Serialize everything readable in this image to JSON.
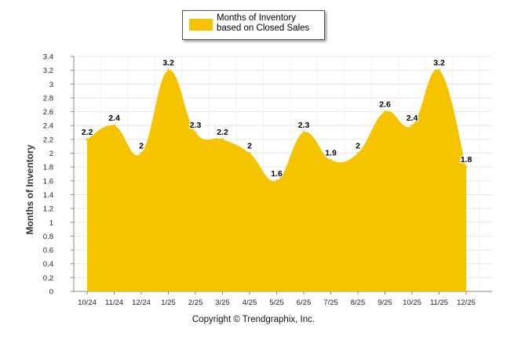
{
  "legend": {
    "label": "Months of Inventory based on Closed Sales"
  },
  "copyright": "Copyright © Trendgraphix, Inc.",
  "colors": {
    "series": "#f5c300",
    "grid": "#e6e6e6",
    "axis": "#888888"
  },
  "chart_data": {
    "type": "area",
    "title": "",
    "xlabel": "",
    "ylabel": "Months of Inventory",
    "categories": [
      "10/24",
      "11/24",
      "12/24",
      "1/25",
      "2/25",
      "3/25",
      "4/25",
      "5/25",
      "6/25",
      "7/25",
      "8/25",
      "9/25",
      "10/25",
      "11/25",
      "12/25"
    ],
    "series": [
      {
        "name": "Months of Inventory based on Closed Sales",
        "values": [
          2.2,
          2.4,
          2,
          3.2,
          2.3,
          2.2,
          2,
          1.6,
          2.3,
          1.9,
          2,
          2.6,
          2.4,
          3.2,
          1.8
        ]
      }
    ],
    "data_labels": [
      "2.2",
      "2.4",
      "2",
      "3.2",
      "2.3",
      "2.2",
      "2",
      "1.6",
      "2.3",
      "1.9",
      "2",
      "2.6",
      "2.4",
      "3.2",
      "1.8"
    ],
    "ylim": [
      0,
      3.4
    ],
    "yticks": [
      "0",
      "0.2",
      "0.4",
      "0.6",
      "0.8",
      "1",
      "1.2",
      "1.4",
      "1.6",
      "1.8",
      "2",
      "2.2",
      "2.4",
      "2.6",
      "2.8",
      "3",
      "3.2",
      "3.4"
    ],
    "grid": true,
    "legend_position": "top-center"
  }
}
